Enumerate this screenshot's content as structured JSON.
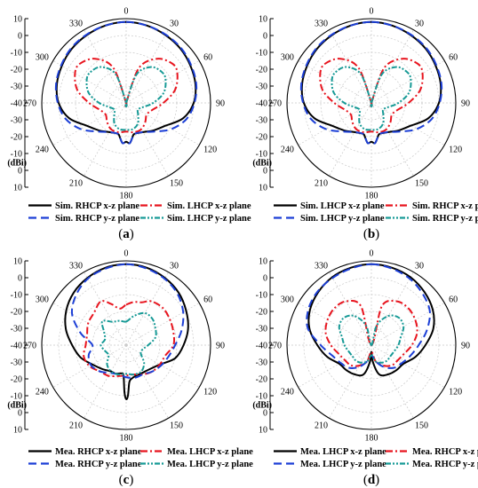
{
  "chart_data": [
    {
      "type": "polar-line",
      "caption": "a",
      "radial_axis": {
        "ticks": [
          10,
          0,
          -10,
          -20,
          -30,
          -40,
          -30,
          -20,
          -10,
          0,
          10
        ],
        "values": [
          10,
          0,
          -10,
          -20,
          -30,
          -40
        ],
        "range": [
          -40,
          10
        ],
        "unit": "(dBi)"
      },
      "angle_ticks": [
        0,
        30,
        60,
        90,
        120,
        150,
        180,
        210,
        240,
        270,
        300,
        330
      ],
      "series": [
        {
          "name": "Sim. RHCP x-z plane",
          "color": "#000000",
          "dash": "solid",
          "angles": [
            0,
            15,
            30,
            45,
            60,
            75,
            90,
            105,
            120,
            135,
            150,
            165,
            170,
            175,
            180,
            185,
            190,
            195,
            210,
            225,
            240,
            255,
            270,
            285,
            300,
            315,
            330,
            345
          ],
          "values": [
            8,
            7.5,
            6.5,
            5.5,
            4,
            2.5,
            0,
            -5,
            -13,
            -17,
            -20,
            -21,
            -19,
            -16,
            -17,
            -16,
            -19,
            -21,
            -20,
            -17,
            -13,
            -5,
            0,
            2.5,
            4,
            5.5,
            6.5,
            7.5
          ]
        },
        {
          "name": "Sim. LHCP x-z plane",
          "color": "#e8141e",
          "dash": "8,3,2,3",
          "angles": [
            0,
            20,
            35,
            50,
            60,
            75,
            90,
            105,
            120,
            135,
            150,
            165,
            180,
            195,
            210,
            225,
            240,
            255,
            270,
            285,
            300,
            310,
            325,
            340,
            360
          ],
          "values": [
            -40,
            -18,
            -8,
            -4,
            -5,
            -10,
            -18,
            -24,
            -26,
            -24,
            -22,
            -22,
            -23,
            -22,
            -22,
            -24,
            -26,
            -24,
            -18,
            -10,
            -5,
            -4,
            -8,
            -18,
            -40
          ]
        },
        {
          "name": "Sim. RHCP y-z plane",
          "color": "#1c3fd6",
          "dash": "9,5",
          "angles": [
            0,
            15,
            30,
            45,
            60,
            75,
            90,
            105,
            120,
            135,
            150,
            165,
            170,
            175,
            180,
            185,
            190,
            195,
            210,
            225,
            240,
            255,
            270,
            285,
            300,
            315,
            330,
            345
          ],
          "values": [
            8,
            7.5,
            6.8,
            6,
            4.5,
            3,
            0.5,
            -3,
            -9,
            -16,
            -20,
            -21,
            -19,
            -16,
            -17,
            -16,
            -19,
            -21,
            -20,
            -16,
            -9,
            -3,
            0.5,
            3,
            4.5,
            6,
            6.8,
            7.5
          ]
        },
        {
          "name": "Sim. LHCP y-z plane",
          "color": "#179a96",
          "dash": "6,2,2,2,2,2",
          "angles": [
            0,
            20,
            35,
            50,
            60,
            75,
            90,
            105,
            120,
            135,
            150,
            165,
            180,
            195,
            210,
            225,
            240,
            255,
            270,
            285,
            300,
            310,
            325,
            340,
            360
          ],
          "values": [
            -40,
            -22,
            -14,
            -12,
            -13,
            -17,
            -24,
            -30,
            -32,
            -30,
            -26,
            -24,
            -24,
            -24,
            -26,
            -30,
            -32,
            -30,
            -24,
            -17,
            -13,
            -12,
            -14,
            -22,
            -40
          ]
        }
      ]
    },
    {
      "type": "polar-line",
      "caption": "b",
      "radial_axis": {
        "ticks": [
          10,
          0,
          -10,
          -20,
          -30,
          -40,
          -30,
          -20,
          -10,
          0,
          10
        ],
        "values": [
          10,
          0,
          -10,
          -20,
          -30,
          -40
        ],
        "range": [
          -40,
          10
        ],
        "unit": "(dBi)"
      },
      "angle_ticks": [
        0,
        30,
        60,
        90,
        120,
        150,
        180,
        210,
        240,
        270,
        300,
        330
      ],
      "series": [
        {
          "name": "Sim. LHCP x-z plane",
          "color": "#000000",
          "dash": "solid",
          "angles": [
            0,
            15,
            30,
            45,
            60,
            75,
            90,
            105,
            120,
            135,
            150,
            165,
            170,
            175,
            180,
            185,
            190,
            195,
            210,
            225,
            240,
            255,
            270,
            285,
            300,
            315,
            330,
            345
          ],
          "values": [
            8,
            7.5,
            6.5,
            5.5,
            4,
            2.5,
            0,
            -5,
            -13,
            -17,
            -20,
            -21,
            -19,
            -16,
            -17,
            -16,
            -19,
            -21,
            -20,
            -17,
            -13,
            -5,
            0,
            2.5,
            4,
            5.5,
            6.5,
            7.5
          ]
        },
        {
          "name": "Sim. RHCP x-z plane",
          "color": "#e8141e",
          "dash": "8,3,2,3",
          "angles": [
            0,
            20,
            35,
            50,
            60,
            75,
            90,
            105,
            120,
            135,
            150,
            165,
            180,
            195,
            210,
            225,
            240,
            255,
            270,
            285,
            300,
            310,
            325,
            340,
            360
          ],
          "values": [
            -40,
            -18,
            -8,
            -4,
            -5,
            -10,
            -18,
            -24,
            -26,
            -24,
            -22,
            -22,
            -23,
            -22,
            -22,
            -24,
            -26,
            -24,
            -18,
            -10,
            -5,
            -4,
            -8,
            -18,
            -40
          ]
        },
        {
          "name": "Sim. LHCP y-z plane",
          "color": "#1c3fd6",
          "dash": "9,5",
          "angles": [
            0,
            15,
            30,
            45,
            60,
            75,
            90,
            105,
            120,
            135,
            150,
            165,
            170,
            175,
            180,
            185,
            190,
            195,
            210,
            225,
            240,
            255,
            270,
            285,
            300,
            315,
            330,
            345
          ],
          "values": [
            8,
            7.5,
            6.8,
            6,
            4.5,
            3,
            0.5,
            -3,
            -9,
            -16,
            -20,
            -21,
            -19,
            -16,
            -17,
            -16,
            -19,
            -21,
            -20,
            -16,
            -9,
            -3,
            0.5,
            3,
            4.5,
            6,
            6.8,
            7.5
          ]
        },
        {
          "name": "Sim. RHCP y-z plane",
          "color": "#179a96",
          "dash": "6,2,2,2,2,2",
          "angles": [
            0,
            20,
            35,
            50,
            60,
            75,
            90,
            105,
            120,
            135,
            150,
            165,
            180,
            195,
            210,
            225,
            240,
            255,
            270,
            285,
            300,
            310,
            325,
            340,
            360
          ],
          "values": [
            -40,
            -22,
            -14,
            -12,
            -13,
            -17,
            -24,
            -30,
            -32,
            -30,
            -26,
            -24,
            -24,
            -24,
            -26,
            -30,
            -32,
            -30,
            -24,
            -17,
            -13,
            -12,
            -14,
            -22,
            -40
          ]
        }
      ]
    },
    {
      "type": "polar-line",
      "caption": "c",
      "radial_axis": {
        "ticks": [
          10,
          0,
          -10,
          -20,
          -30,
          -40,
          -30,
          -20,
          -10,
          0,
          10
        ],
        "values": [
          10,
          0,
          -10,
          -20,
          -30,
          -40
        ],
        "range": [
          -40,
          10
        ],
        "unit": "(dBi)"
      },
      "angle_ticks": [
        0,
        30,
        60,
        90,
        120,
        150,
        180,
        210,
        240,
        270,
        300,
        330
      ],
      "series": [
        {
          "name": "Mea. RHCP x-z plane",
          "color": "#000000",
          "dash": "solid",
          "angles": [
            0,
            15,
            30,
            45,
            60,
            75,
            90,
            105,
            120,
            135,
            150,
            160,
            170,
            175,
            178,
            180,
            182,
            185,
            190,
            200,
            210,
            225,
            240,
            255,
            270,
            285,
            300,
            315,
            330,
            345
          ],
          "values": [
            8,
            7.5,
            6,
            4,
            1,
            -2,
            -6,
            -10,
            -17,
            -20,
            -21,
            -21,
            -20,
            -18,
            -10,
            -8,
            -12,
            -22,
            -23,
            -22,
            -22,
            -20,
            -17,
            -12,
            -8,
            -3,
            1,
            4,
            6,
            7.5
          ]
        },
        {
          "name": "Mea. LHCP x-z plane",
          "color": "#e8141e",
          "dash": "8,3,2,3",
          "angles": [
            0,
            10,
            20,
            30,
            45,
            60,
            75,
            90,
            105,
            120,
            135,
            150,
            165,
            180,
            195,
            210,
            225,
            240,
            255,
            270,
            285,
            300,
            315,
            330,
            340,
            350
          ],
          "values": [
            -16,
            -14,
            -13,
            -10,
            -9,
            -10,
            -11,
            -12,
            -16,
            -17,
            -18,
            -20,
            -22,
            -22,
            -21,
            -19,
            -18,
            -15,
            -14,
            -16,
            -16,
            -14,
            -13,
            -10,
            -14,
            -18
          ]
        },
        {
          "name": "Mea. RHCP y-z plane",
          "color": "#1c3fd6",
          "dash": "9,5",
          "angles": [
            0,
            15,
            30,
            45,
            60,
            75,
            90,
            105,
            120,
            135,
            150,
            165,
            180,
            195,
            210,
            225,
            240,
            255,
            270,
            285,
            300,
            315,
            330,
            345
          ],
          "values": [
            8,
            7,
            5.5,
            3,
            -1,
            -6,
            -11,
            -14,
            -16,
            -18,
            -20,
            -20,
            -21,
            -22,
            -21,
            -18,
            -16,
            -17,
            -20,
            -12,
            -3,
            2,
            5.5,
            7
          ]
        },
        {
          "name": "Mea. LHCP y-z plane",
          "color": "#179a96",
          "dash": "6,2,2,2,2,2",
          "angles": [
            0,
            15,
            30,
            45,
            60,
            75,
            90,
            105,
            120,
            135,
            150,
            165,
            180,
            195,
            210,
            225,
            240,
            255,
            270,
            285,
            300,
            315,
            330,
            345
          ],
          "values": [
            -26,
            -22,
            -18,
            -18,
            -20,
            -22,
            -27,
            -30,
            -30,
            -25,
            -22,
            -22,
            -23,
            -22,
            -22,
            -24,
            -28,
            -27,
            -25,
            -27,
            -25,
            -20,
            -24,
            -25
          ]
        }
      ]
    },
    {
      "type": "polar-line",
      "caption": "d",
      "radial_axis": {
        "ticks": [
          10,
          0,
          -10,
          -20,
          -30,
          -40,
          -30,
          -20,
          -10,
          0,
          10
        ],
        "values": [
          10,
          0,
          -10,
          -20,
          -30,
          -40
        ],
        "range": [
          -40,
          10
        ],
        "unit": "(dBi)"
      },
      "angle_ticks": [
        0,
        30,
        60,
        90,
        120,
        150,
        180,
        210,
        240,
        270,
        300,
        330
      ],
      "series": [
        {
          "name": "Mea. LHCP x-z plane",
          "color": "#000000",
          "dash": "solid",
          "angles": [
            0,
            15,
            30,
            45,
            60,
            75,
            90,
            105,
            120,
            135,
            150,
            165,
            175,
            180,
            185,
            195,
            210,
            225,
            240,
            255,
            270,
            285,
            300,
            315,
            330,
            345
          ],
          "values": [
            8,
            7.5,
            6.5,
            4.5,
            2,
            -2,
            -8,
            -13,
            -18,
            -19,
            -20,
            -22,
            -30,
            -36,
            -30,
            -22,
            -20,
            -19,
            -18,
            -13,
            -8,
            -2,
            2,
            4.5,
            6.5,
            7.5
          ]
        },
        {
          "name": "Mea. RHCP x-z plane",
          "color": "#e8141e",
          "dash": "8,3,2,3",
          "angles": [
            0,
            15,
            30,
            45,
            60,
            75,
            90,
            105,
            120,
            135,
            150,
            165,
            180,
            195,
            210,
            225,
            240,
            255,
            270,
            285,
            300,
            315,
            330,
            345
          ],
          "values": [
            -40,
            -16,
            -10,
            -9,
            -10,
            -12,
            -16,
            -20,
            -22,
            -23,
            -26,
            -30,
            -36,
            -30,
            -26,
            -23,
            -22,
            -20,
            -16,
            -12,
            -10,
            -9,
            -10,
            -16
          ]
        },
        {
          "name": "Mea. LHCP y-z plane",
          "color": "#1c3fd6",
          "dash": "9,5",
          "angles": [
            0,
            15,
            30,
            45,
            60,
            75,
            90,
            105,
            120,
            135,
            150,
            165,
            180,
            195,
            210,
            225,
            240,
            255,
            270,
            285,
            300,
            315,
            330,
            345
          ],
          "values": [
            8,
            7,
            5.5,
            3,
            0,
            -6,
            -12,
            -16,
            -19,
            -21,
            -25,
            -30,
            -34,
            -30,
            -25,
            -21,
            -19,
            -16,
            -10,
            -1,
            3,
            5,
            6,
            7
          ]
        },
        {
          "name": "Mea. RHCP y-z plane",
          "color": "#179a96",
          "dash": "6,2,2,2,2,2",
          "angles": [
            0,
            15,
            30,
            45,
            60,
            75,
            90,
            105,
            120,
            135,
            150,
            165,
            180,
            195,
            210,
            225,
            240,
            255,
            270,
            285,
            300,
            315,
            330,
            345
          ],
          "values": [
            -40,
            -28,
            -20,
            -17,
            -18,
            -22,
            -24,
            -26,
            -27,
            -27,
            -28,
            -30,
            -34,
            -30,
            -28,
            -27,
            -27,
            -26,
            -24,
            -22,
            -18,
            -17,
            -20,
            -28
          ]
        }
      ]
    }
  ]
}
